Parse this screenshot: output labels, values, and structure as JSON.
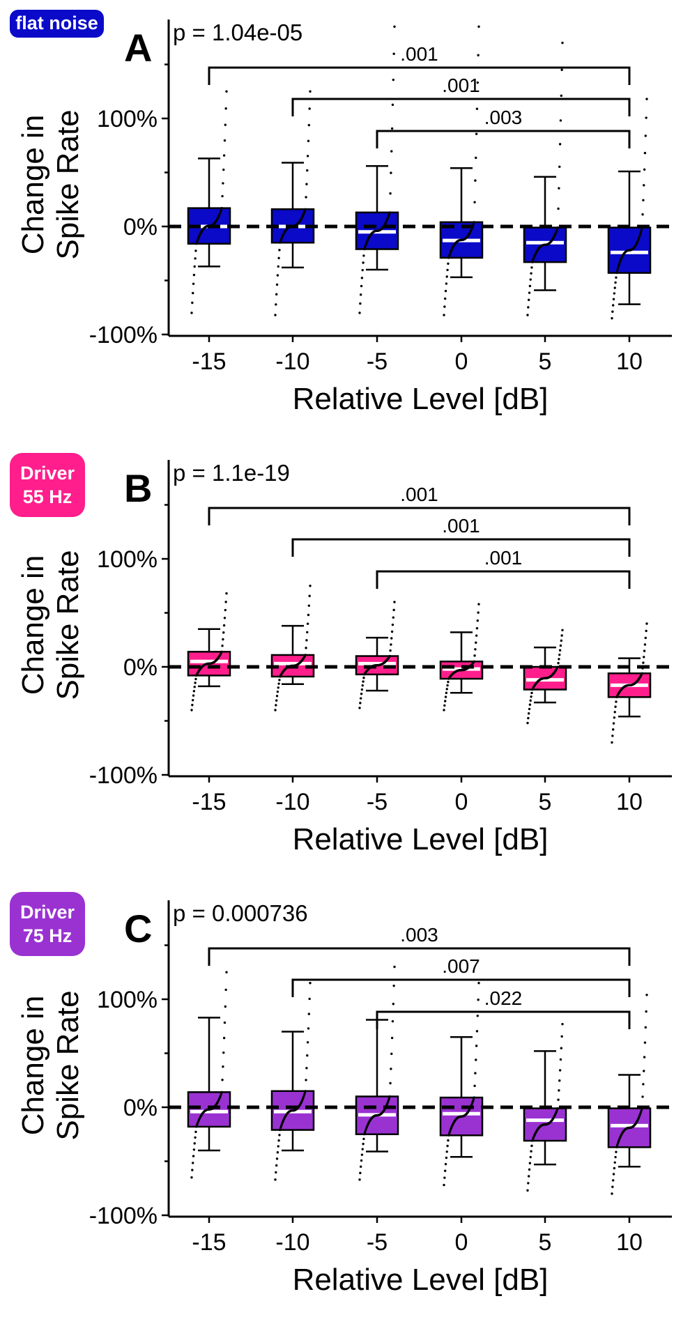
{
  "chart_data": [
    {
      "panel_letter": "A",
      "type": "box",
      "condition_label": "flat noise",
      "condition_color": "#0a0ac8",
      "box_color": "#0a0ac8",
      "p_label": "p = 1.04e-05",
      "ylabel": [
        "Change in",
        "Spike Rate"
      ],
      "xlabel": "Relative Level [dB]",
      "categories": [
        "-15",
        "-10",
        "-5",
        "0",
        "5",
        "10"
      ],
      "yticks": [
        "-100%",
        "0%",
        "100%"
      ],
      "ylim": [
        -100,
        160
      ],
      "boxes": [
        {
          "q1": -16,
          "median": 0,
          "q3": 17,
          "whisker_low": -37,
          "whisker_high": 63,
          "pts_min": -80,
          "pts_max": 125
        },
        {
          "q1": -15,
          "median": 0,
          "q3": 16,
          "whisker_low": -38,
          "whisker_high": 59,
          "pts_min": -82,
          "pts_max": 125
        },
        {
          "q1": -21,
          "median": -5,
          "q3": 13,
          "whisker_low": -40,
          "whisker_high": 56,
          "pts_min": -80,
          "pts_max": 185
        },
        {
          "q1": -29,
          "median": -13,
          "q3": 4,
          "whisker_low": -47,
          "whisker_high": 54,
          "pts_min": -82,
          "pts_max": 185
        },
        {
          "q1": -33,
          "median": -15,
          "q3": -1,
          "whisker_low": -59,
          "whisker_high": 46,
          "pts_min": -82,
          "pts_max": 170
        },
        {
          "q1": -43,
          "median": -24,
          "q3": -1,
          "whisker_low": -72,
          "whisker_high": 51,
          "pts_min": -85,
          "pts_max": 118
        }
      ],
      "comparisons": [
        {
          "from": "-15",
          "to": "10",
          "label": ".001"
        },
        {
          "from": "-10",
          "to": "10",
          "label": ".001"
        },
        {
          "from": "-5",
          "to": "10",
          "label": ".003"
        }
      ]
    },
    {
      "panel_letter": "B",
      "type": "box",
      "condition_label": [
        "Driver",
        "55 Hz"
      ],
      "condition_color": "#ff1e8c",
      "box_color": "#ff1e8c",
      "p_label": "p = 1.1e-19",
      "ylabel": [
        "Change in",
        "Spike Rate"
      ],
      "xlabel": "Relative Level [dB]",
      "categories": [
        "-15",
        "-10",
        "-5",
        "0",
        "5",
        "10"
      ],
      "yticks": [
        "-100%",
        "0%",
        "100%"
      ],
      "ylim": [
        -100,
        160
      ],
      "boxes": [
        {
          "q1": -8,
          "median": 5,
          "q3": 14,
          "whisker_low": -18,
          "whisker_high": 35,
          "pts_min": -40,
          "pts_max": 68
        },
        {
          "q1": -9,
          "median": 3,
          "q3": 11,
          "whisker_low": -16,
          "whisker_high": 38,
          "pts_min": -40,
          "pts_max": 75
        },
        {
          "q1": -7,
          "median": 3,
          "q3": 10,
          "whisker_low": -22,
          "whisker_high": 27,
          "pts_min": -38,
          "pts_max": 60
        },
        {
          "q1": -11,
          "median": -2,
          "q3": 5,
          "whisker_low": -24,
          "whisker_high": 32,
          "pts_min": -40,
          "pts_max": 58
        },
        {
          "q1": -21,
          "median": -12,
          "q3": 0,
          "whisker_low": -33,
          "whisker_high": 18,
          "pts_min": -52,
          "pts_max": 34
        },
        {
          "q1": -28,
          "median": -17,
          "q3": -6,
          "whisker_low": -46,
          "whisker_high": 8,
          "pts_min": -70,
          "pts_max": 40
        }
      ],
      "comparisons": [
        {
          "from": "-15",
          "to": "10",
          "label": ".001"
        },
        {
          "from": "-10",
          "to": "10",
          "label": ".001"
        },
        {
          "from": "-5",
          "to": "10",
          "label": ".001"
        }
      ]
    },
    {
      "panel_letter": "C",
      "type": "box",
      "condition_label": [
        "Driver",
        "75 Hz"
      ],
      "condition_color": "#9a32d2",
      "box_color": "#9a32d2",
      "p_label": "p = 0.000736",
      "ylabel": [
        "Change in",
        "Spike Rate"
      ],
      "xlabel": "Relative Level [dB]",
      "categories": [
        "-15",
        "-10",
        "-5",
        "0",
        "5",
        "10"
      ],
      "yticks": [
        "-100%",
        "0%",
        "100%"
      ],
      "ylim": [
        -100,
        160
      ],
      "boxes": [
        {
          "q1": -18,
          "median": -4,
          "q3": 14,
          "whisker_low": -40,
          "whisker_high": 83,
          "pts_min": -65,
          "pts_max": 125
        },
        {
          "q1": -21,
          "median": -4,
          "q3": 15,
          "whisker_low": -40,
          "whisker_high": 70,
          "pts_min": -67,
          "pts_max": 115
        },
        {
          "q1": -25,
          "median": -7,
          "q3": 10,
          "whisker_low": -41,
          "whisker_high": 81,
          "pts_min": -67,
          "pts_max": 130
        },
        {
          "q1": -26,
          "median": -6,
          "q3": 9,
          "whisker_low": -46,
          "whisker_high": 65,
          "pts_min": -72,
          "pts_max": 115
        },
        {
          "q1": -31,
          "median": -12,
          "q3": -1,
          "whisker_low": -53,
          "whisker_high": 52,
          "pts_min": -77,
          "pts_max": 77
        },
        {
          "q1": -37,
          "median": -17,
          "q3": -1,
          "whisker_low": -55,
          "whisker_high": 30,
          "pts_min": -80,
          "pts_max": 104
        }
      ],
      "comparisons": [
        {
          "from": "-15",
          "to": "10",
          "label": ".003"
        },
        {
          "from": "-10",
          "to": "10",
          "label": ".007"
        },
        {
          "from": "-5",
          "to": "10",
          "label": ".022"
        }
      ]
    }
  ]
}
